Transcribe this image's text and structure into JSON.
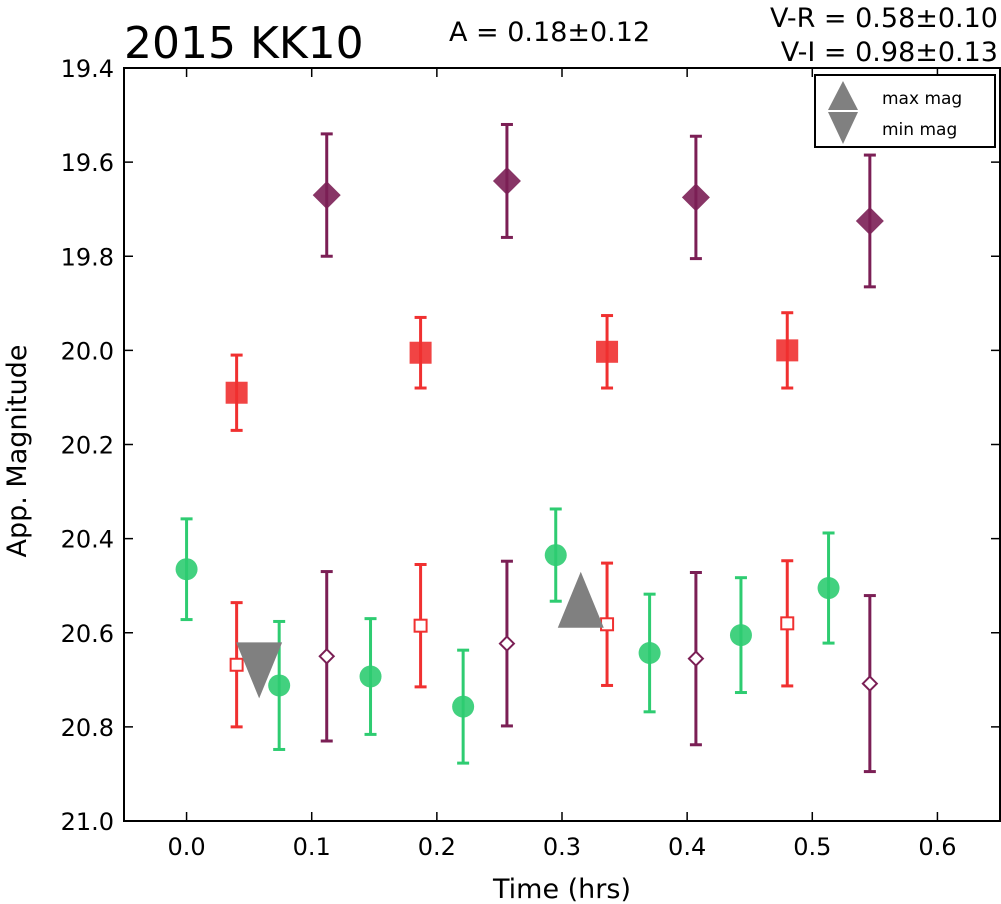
{
  "chart_data": {
    "type": "scatter",
    "title": "2015 KK10",
    "annotations": {
      "amplitude": "A  = 0.18±0.12",
      "v_r": "V-R = 0.58±0.10",
      "v_i": "V-I  = 0.98±0.13"
    },
    "xlabel": "Time (hrs)",
    "ylabel": "App. Magnitude",
    "xlim": [
      -0.05,
      0.65
    ],
    "ylim": [
      21.0,
      19.4
    ],
    "y_inverted": true,
    "grid": false,
    "x_ticks": [
      "0.0",
      "0.1",
      "0.2",
      "0.3",
      "0.4",
      "0.5",
      "0.6"
    ],
    "y_ticks": [
      "19.4",
      "19.6",
      "19.8",
      "20.0",
      "20.2",
      "20.4",
      "20.6",
      "20.8",
      "21.0"
    ],
    "legend": {
      "placement": "top-right",
      "entries": [
        {
          "label": "max mag",
          "marker": "triangle-up"
        },
        {
          "label": "min mag",
          "marker": "triangle-down"
        }
      ]
    },
    "series": [
      {
        "marker": "diamond",
        "filled": true,
        "color": "#7b1f55",
        "points": [
          {
            "x": 0.112,
            "y": 19.67,
            "err": 0.13
          },
          {
            "x": 0.256,
            "y": 19.64,
            "err": 0.12
          },
          {
            "x": 0.407,
            "y": 19.675,
            "err": 0.13
          },
          {
            "x": 0.546,
            "y": 19.725,
            "err": 0.14
          }
        ]
      },
      {
        "marker": "square",
        "filled": true,
        "color": "#f03030",
        "points": [
          {
            "x": 0.04,
            "y": 20.09,
            "err": 0.08
          },
          {
            "x": 0.187,
            "y": 20.005,
            "err": 0.075
          },
          {
            "x": 0.336,
            "y": 20.003,
            "err": 0.077
          },
          {
            "x": 0.48,
            "y": 20.0,
            "err": 0.08
          }
        ]
      },
      {
        "marker": "circle",
        "filled": true,
        "color": "#2ecc71",
        "points": [
          {
            "x": 0.0,
            "y": 20.465,
            "err": 0.107
          },
          {
            "x": 0.074,
            "y": 20.712,
            "err": 0.136
          },
          {
            "x": 0.147,
            "y": 20.693,
            "err": 0.123
          },
          {
            "x": 0.221,
            "y": 20.757,
            "err": 0.12
          },
          {
            "x": 0.295,
            "y": 20.435,
            "err": 0.098
          },
          {
            "x": 0.37,
            "y": 20.643,
            "err": 0.125
          },
          {
            "x": 0.443,
            "y": 20.605,
            "err": 0.122
          },
          {
            "x": 0.513,
            "y": 20.505,
            "err": 0.117
          }
        ]
      },
      {
        "marker": "square",
        "filled": false,
        "color": "#f03030",
        "points": [
          {
            "x": 0.04,
            "y": 20.668,
            "err": 0.132
          },
          {
            "x": 0.187,
            "y": 20.585,
            "err": 0.13
          },
          {
            "x": 0.336,
            "y": 20.582,
            "err": 0.13
          },
          {
            "x": 0.48,
            "y": 20.58,
            "err": 0.133
          }
        ]
      },
      {
        "marker": "diamond",
        "filled": false,
        "color": "#7b1f55",
        "points": [
          {
            "x": 0.112,
            "y": 20.65,
            "err": 0.18
          },
          {
            "x": 0.256,
            "y": 20.623,
            "err": 0.175
          },
          {
            "x": 0.407,
            "y": 20.655,
            "err": 0.183
          },
          {
            "x": 0.546,
            "y": 20.708,
            "err": 0.187
          }
        ]
      }
    ],
    "extrema_markers": [
      {
        "type": "max",
        "marker": "triangle-up",
        "x": 0.315,
        "y": 20.53,
        "color": "#808080"
      },
      {
        "type": "min",
        "marker": "triangle-down",
        "x": 0.058,
        "y": 20.68,
        "color": "#808080"
      }
    ]
  }
}
